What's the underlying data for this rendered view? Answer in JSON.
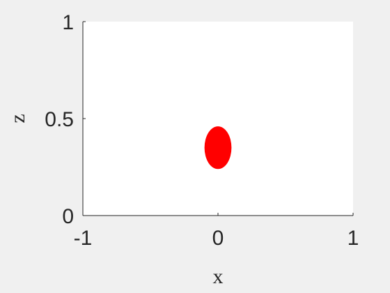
{
  "chart_data": {
    "type": "scatter",
    "title": "",
    "xlabel": "x",
    "ylabel": "z",
    "xlim": [
      -1,
      1
    ],
    "ylim": [
      0,
      1
    ],
    "xticks": [
      -1,
      0,
      1
    ],
    "yticks": [
      0,
      0.5,
      1
    ],
    "xtick_labels": [
      "-1",
      "0",
      "1"
    ],
    "ytick_labels": [
      "0",
      "0.5",
      "1"
    ],
    "grid": false,
    "series": [
      {
        "marker": "filled-ellipse",
        "color": "#ff0000",
        "points": [
          {
            "x": 0,
            "z": 0.35,
            "rx": 0.1,
            "rz": 0.11
          }
        ]
      }
    ]
  }
}
